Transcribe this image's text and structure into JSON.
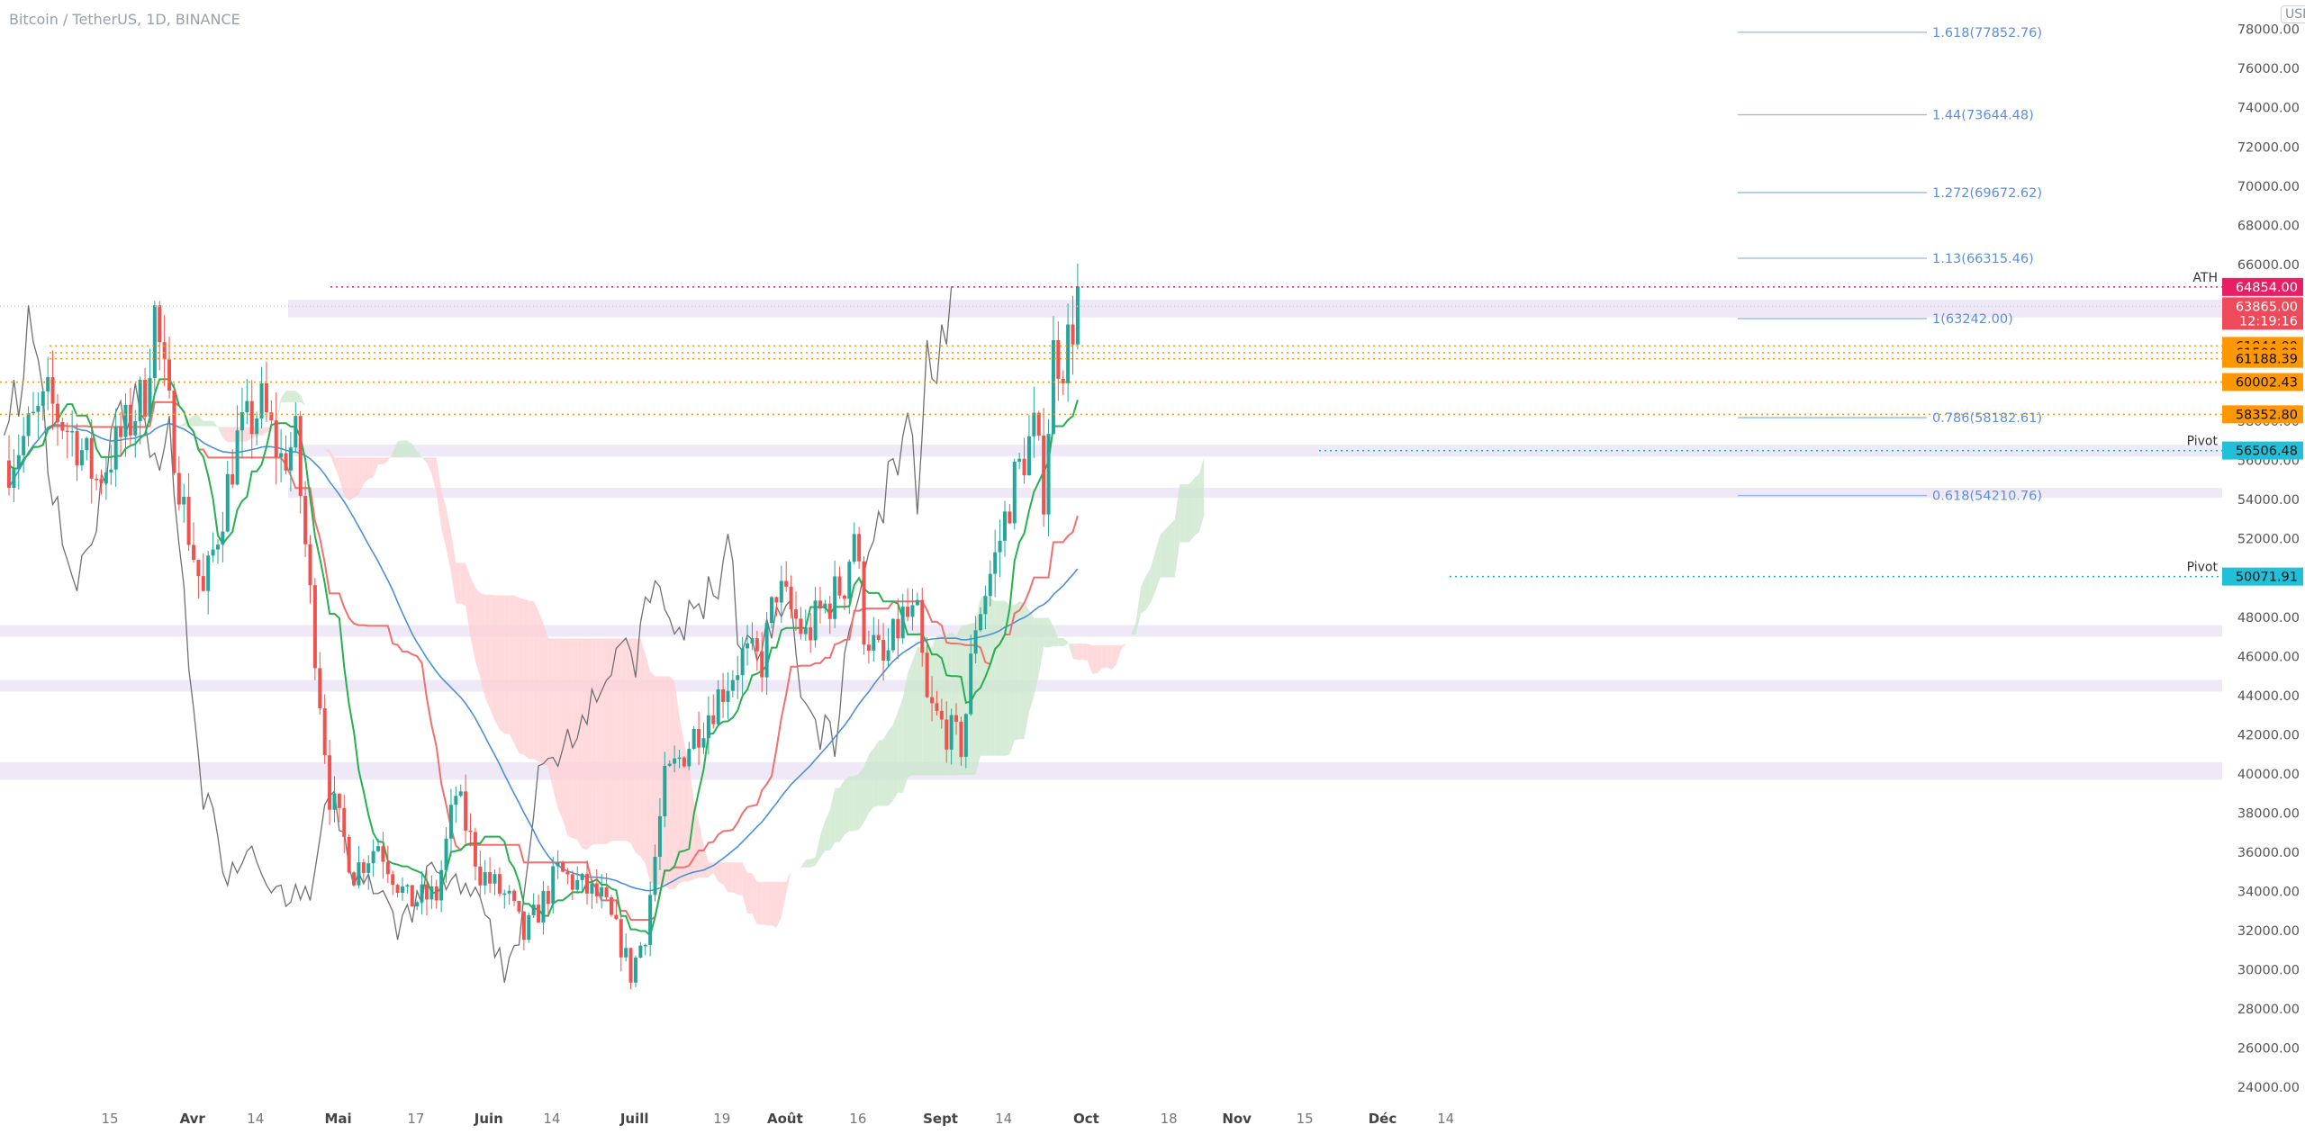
{
  "header": {
    "symbol_line": "Bitcoin / TetherUS, 1D, BINANCE",
    "currency": "USDT"
  },
  "colors": {
    "up": "#26a69a",
    "down": "#ef5350",
    "tenkan": "#26b050",
    "kijun": "#f07070",
    "ma": "#4a90d9",
    "lagging": "#707070",
    "fib": "#90b8ea",
    "fib_text": "#5a8fe0",
    "ath": "#e91e63",
    "pivot": "#00bcd4",
    "support": "#ff9800",
    "zone": "#ede7f6",
    "cloud_green": "#c8e6c9",
    "cloud_red": "#ffcdd2"
  },
  "chart_data": {
    "type": "candlestick",
    "title": "Bitcoin / TetherUS, 1D, BINANCE",
    "ylim": [
      23000,
      79500
    ],
    "y_ticks": [
      24000,
      26000,
      28000,
      30000,
      32000,
      34000,
      36000,
      38000,
      40000,
      42000,
      44000,
      46000,
      48000,
      50000,
      52000,
      54000,
      56000,
      58000,
      60000,
      62000,
      64000,
      66000,
      68000,
      70000,
      72000,
      74000,
      76000,
      78000
    ],
    "x_labels": [
      {
        "label": "15",
        "day": 0
      },
      {
        "label": "Avr",
        "day": 17
      },
      {
        "label": "14",
        "day": 30
      },
      {
        "label": "Mai",
        "day": 47
      },
      {
        "label": "17",
        "day": 63
      },
      {
        "label": "Juin",
        "day": 78
      },
      {
        "label": "14",
        "day": 91
      },
      {
        "label": "Juill",
        "day": 108
      },
      {
        "label": "19",
        "day": 126
      },
      {
        "label": "Août",
        "day": 139
      },
      {
        "label": "16",
        "day": 154
      },
      {
        "label": "Sept",
        "day": 171
      },
      {
        "label": "14",
        "day": 184
      },
      {
        "label": "Oct",
        "day": 201
      },
      {
        "label": "18",
        "day": 218
      },
      {
        "label": "Nov",
        "day": 232
      },
      {
        "label": "15",
        "day": 246
      },
      {
        "label": "Déc",
        "day": 262
      },
      {
        "label": "14",
        "day": 275
      }
    ],
    "price_anchors": [
      [
        0,
        56000
      ],
      [
        8,
        59000
      ],
      [
        14,
        57000
      ],
      [
        18,
        55000
      ],
      [
        25,
        58000
      ],
      [
        28,
        59500
      ],
      [
        30,
        63500
      ],
      [
        32,
        60000
      ],
      [
        36,
        53500
      ],
      [
        40,
        49000
      ],
      [
        47,
        57000
      ],
      [
        52,
        58800
      ],
      [
        56,
        56000
      ],
      [
        59,
        57000
      ],
      [
        62,
        49000
      ],
      [
        66,
        39000
      ],
      [
        71,
        35000
      ],
      [
        76,
        36500
      ],
      [
        79,
        35000
      ],
      [
        82,
        33500
      ],
      [
        88,
        33800
      ],
      [
        92,
        39000
      ],
      [
        97,
        35000
      ],
      [
        103,
        33500
      ],
      [
        106,
        31700
      ],
      [
        110,
        33500
      ],
      [
        113,
        35000
      ],
      [
        118,
        34200
      ],
      [
        122,
        33600
      ],
      [
        126,
        31300
      ],
      [
        128,
        29800
      ],
      [
        131,
        32000
      ],
      [
        135,
        39500
      ],
      [
        141,
        42000
      ],
      [
        146,
        44000
      ],
      [
        151,
        46000
      ],
      [
        155,
        45700
      ],
      [
        158,
        49500
      ],
      [
        164,
        47000
      ],
      [
        167,
        48200
      ],
      [
        172,
        49800
      ],
      [
        174,
        52500
      ],
      [
        176,
        47500
      ],
      [
        180,
        45500
      ],
      [
        184,
        48000
      ],
      [
        187,
        47800
      ],
      [
        189,
        43500
      ],
      [
        192,
        42500
      ],
      [
        196,
        41500
      ],
      [
        197,
        43200
      ],
      [
        199,
        47800
      ],
      [
        203,
        51000
      ],
      [
        207,
        55000
      ],
      [
        211,
        57500
      ],
      [
        213,
        54500
      ],
      [
        215,
        61500
      ],
      [
        217,
        61200
      ],
      [
        219,
        63000
      ],
      [
        220,
        64500
      ]
    ],
    "levels": [
      {
        "label": "ATH",
        "value": 64854.0,
        "kind": "ath"
      },
      {
        "label": "",
        "value": 63865.0,
        "kind": "last",
        "timer": "12:19:16"
      },
      {
        "label": "",
        "value": 61844.0,
        "kind": "support"
      },
      {
        "label": "",
        "value": 61500.0,
        "kind": "support"
      },
      {
        "label": "",
        "value": 61188.39,
        "kind": "support"
      },
      {
        "label": "",
        "value": 60002.43,
        "kind": "support"
      },
      {
        "label": "",
        "value": 58352.8,
        "kind": "support"
      },
      {
        "label": "Pivot",
        "value": 56506.48,
        "kind": "pivot"
      },
      {
        "label": "Pivot",
        "value": 50071.91,
        "kind": "pivot"
      }
    ],
    "fibonacci": [
      {
        "label": "1.618(77852.76)",
        "value": 77852.76
      },
      {
        "label": "1.44(73644.48)",
        "value": 73644.48
      },
      {
        "label": "1.272(69672.62)",
        "value": 69672.62
      },
      {
        "label": "1.13(66315.46)",
        "value": 66315.46
      },
      {
        "label": "1(63242.00)",
        "value": 63242.0
      },
      {
        "label": "0.786(58182.61)",
        "value": 58182.61
      },
      {
        "label": "0.618(54210.76)",
        "value": 54210.76
      }
    ],
    "zones": [
      [
        63300,
        64200
      ],
      [
        56200,
        56800
      ],
      [
        54100,
        54600
      ],
      [
        47000,
        47600
      ],
      [
        44200,
        44800
      ],
      [
        39700,
        40600
      ]
    ],
    "indicators": [
      "Ichimoku cloud",
      "Tenkan-sen",
      "Kijun-sen",
      "Moving average",
      "Lagging span"
    ]
  }
}
